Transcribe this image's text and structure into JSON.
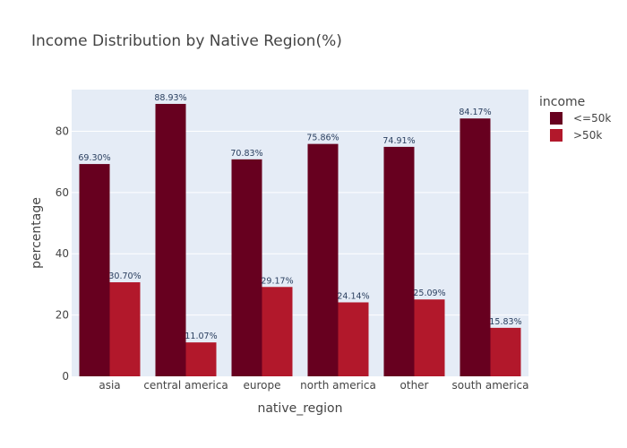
{
  "chart_data": {
    "type": "bar",
    "title": "Income Distribution by Native Region(%)",
    "xlabel": "native_region",
    "ylabel": "percentage",
    "categories": [
      "asia",
      "central america",
      "europe",
      "north america",
      "other",
      "south america"
    ],
    "series": [
      {
        "name": "<=50k",
        "color": "#67001f",
        "values": [
          69.3,
          88.93,
          70.83,
          75.86,
          74.91,
          84.17
        ],
        "labels": [
          "69.30%",
          "88.93%",
          "70.83%",
          "75.86%",
          "74.91%",
          "84.17%"
        ]
      },
      {
        "name": ">50k",
        "color": "#b2182b",
        "values": [
          30.7,
          11.07,
          29.17,
          24.14,
          25.09,
          15.83
        ],
        "labels": [
          "30.70%",
          "11.07%",
          "29.17%",
          "24.14%",
          "25.09%",
          "15.83%"
        ]
      }
    ],
    "ylim": [
      0,
      93.6
    ],
    "yticks": [
      0,
      20,
      40,
      60,
      80
    ],
    "legend": {
      "title": "income",
      "position": "top-right"
    },
    "grid": true,
    "plot_background": "#e5ecf6"
  }
}
